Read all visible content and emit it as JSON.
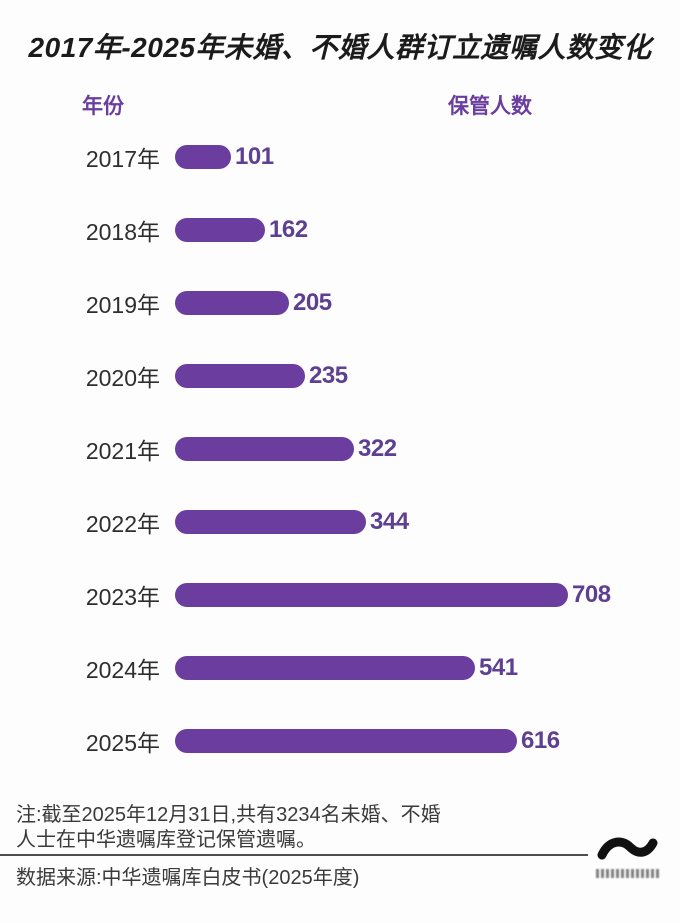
{
  "title": "2017年-2025年未婚、不婚人群订立遗嘱人数变化",
  "column_headers": {
    "year": "年份",
    "count": "保管人数"
  },
  "chart_data": {
    "type": "bar",
    "orientation": "horizontal",
    "title": "2017年-2025年未婚、不婚人群订立遗嘱人数变化",
    "categories": [
      "2017年",
      "2018年",
      "2019年",
      "2020年",
      "2021年",
      "2022年",
      "2023年",
      "2024年",
      "2025年"
    ],
    "values": [
      101,
      162,
      205,
      235,
      322,
      344,
      708,
      541,
      616
    ],
    "xlim": [
      0,
      708
    ],
    "value_labels_shown": true,
    "grid": false,
    "legend": "none",
    "bar_color": "#6a3d9e",
    "value_label_color": "#5e4090"
  },
  "note": {
    "lines": [
      "注:截至2025年12月31日,共有3234名未婚、不婚",
      "人士在中华遗嘱库登记保管遗嘱。"
    ]
  },
  "source_text": "数据来源:中华遗嘱库白皮书(2025年度)",
  "logo": {
    "icon": "wave-logo-icon"
  },
  "colors": {
    "bar": "#6a3d9e",
    "value_label": "#5e4090",
    "column_header": "#6a3d9e",
    "title": "#1b1b1b",
    "year_label": "#2e2e2e",
    "note": "#3a3a3a",
    "divider": "#4f4f4f",
    "background": "#fdfdfd"
  }
}
